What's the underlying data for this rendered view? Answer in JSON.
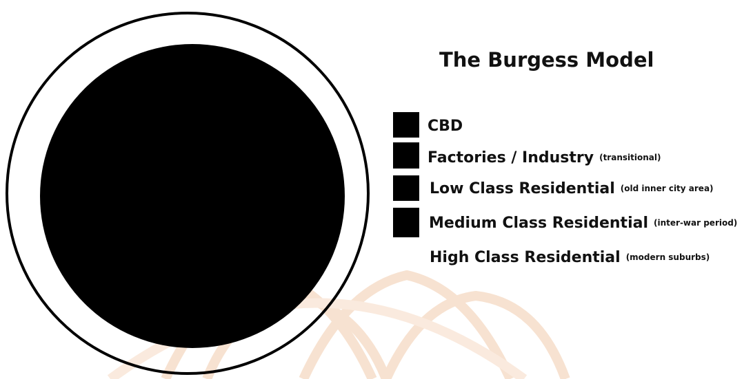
{
  "title": "The Burgess Model",
  "legend": [
    {
      "label": "CBD"
    },
    {
      "label": "Factories / Industry",
      "note": "(transitional)"
    },
    {
      "label": "Low Class Residential",
      "note": "(old inner city area)"
    },
    {
      "label": "Medium Class Residential",
      "note": "(inter-war period)"
    },
    {
      "label": "High Class Residential",
      "note": "(modern suburbs)"
    }
  ]
}
